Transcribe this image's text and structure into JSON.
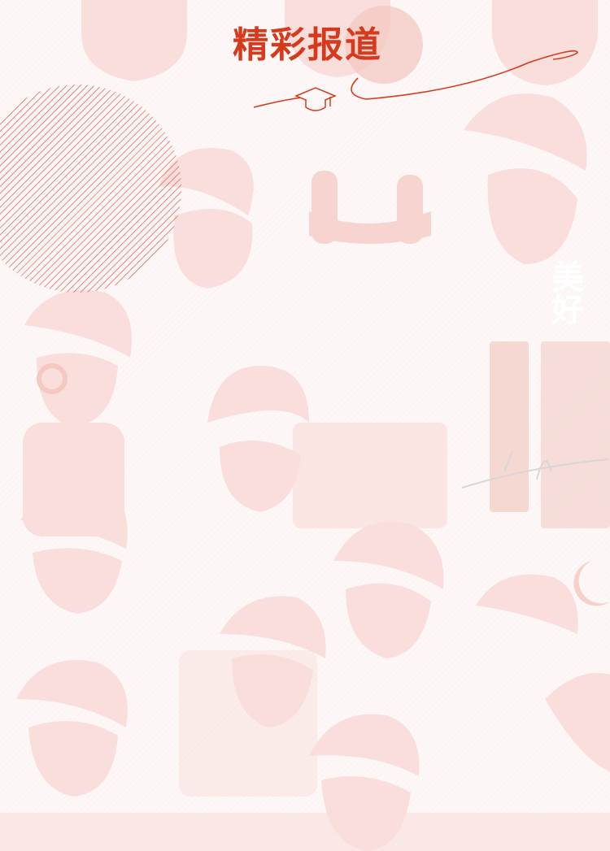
{
  "header": {
    "title": "精彩报道"
  },
  "background": {
    "edge_text": "美好"
  },
  "colors": {
    "accent": "#d63a1c",
    "background": "#fdf8f7",
    "illustration": "#f9dedb",
    "hatch": "#d8523f"
  },
  "icons": {
    "title_decoration": "graduation-cap-icon"
  }
}
